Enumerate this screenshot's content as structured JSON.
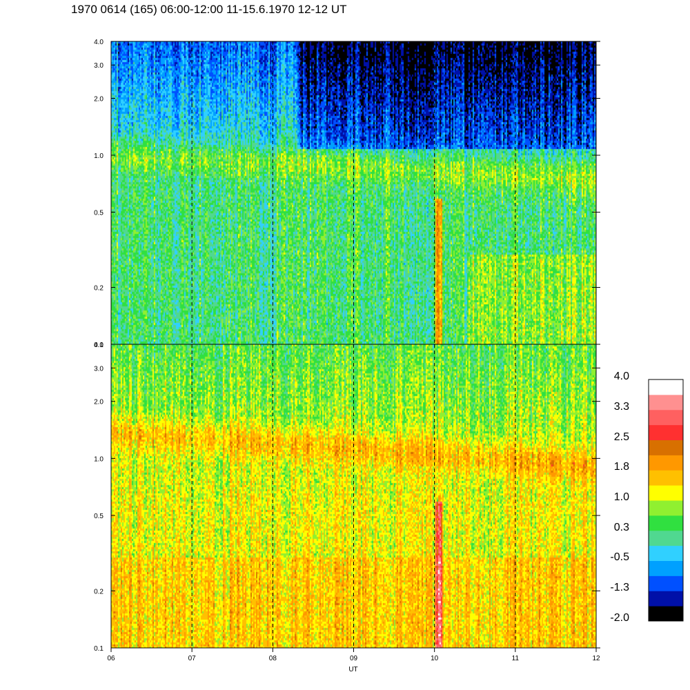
{
  "chart_data": {
    "type": "heatmap",
    "title": "1970 0614 (165) 06:00-12:00 11-15.6.1970  12-12 UT",
    "xlabel": "UT",
    "x_ticks": [
      "06",
      "07",
      "08",
      "09",
      "10",
      "11",
      "12"
    ],
    "xlim": [
      6,
      12
    ],
    "y_scale": "log",
    "ylim": [
      0.1,
      4.0
    ],
    "y_ticks": [
      "4.0",
      "3.0",
      "2.0",
      "1.0",
      "0.5",
      "0.2",
      "0.1"
    ],
    "y_tick_values": [
      4.0,
      3.0,
      2.0,
      1.0,
      0.5,
      0.2,
      0.1
    ],
    "dashed_vertical_lines_at": [
      7,
      8,
      9,
      10,
      11
    ],
    "panels": [
      {
        "name": "upper",
        "dominant_band": {
          "y_center": 1.0,
          "level": 1.0
        },
        "background_level": 0.3,
        "high_freq_level": -0.9
      },
      {
        "name": "lower",
        "dominant_band": {
          "y_center": 1.1,
          "level": 1.9
        },
        "background_level": 1.2,
        "high_freq_level": 0.5
      }
    ],
    "colorbar": {
      "tick_labels": [
        "4.0",
        "3.3",
        "2.5",
        "1.8",
        "1.0",
        "0.3",
        "-0.5",
        "-1.3",
        "-2.0"
      ],
      "range": [
        -2.0,
        4.0
      ],
      "colors": [
        "#000000",
        "#0010a8",
        "#0050ff",
        "#00a0ff",
        "#30d0ff",
        "#50d890",
        "#30e040",
        "#90f030",
        "#ffff00",
        "#ffc000",
        "#ff9800",
        "#d87000",
        "#ff3030",
        "#ff6060",
        "#ff9090",
        "#ffffff"
      ]
    }
  }
}
